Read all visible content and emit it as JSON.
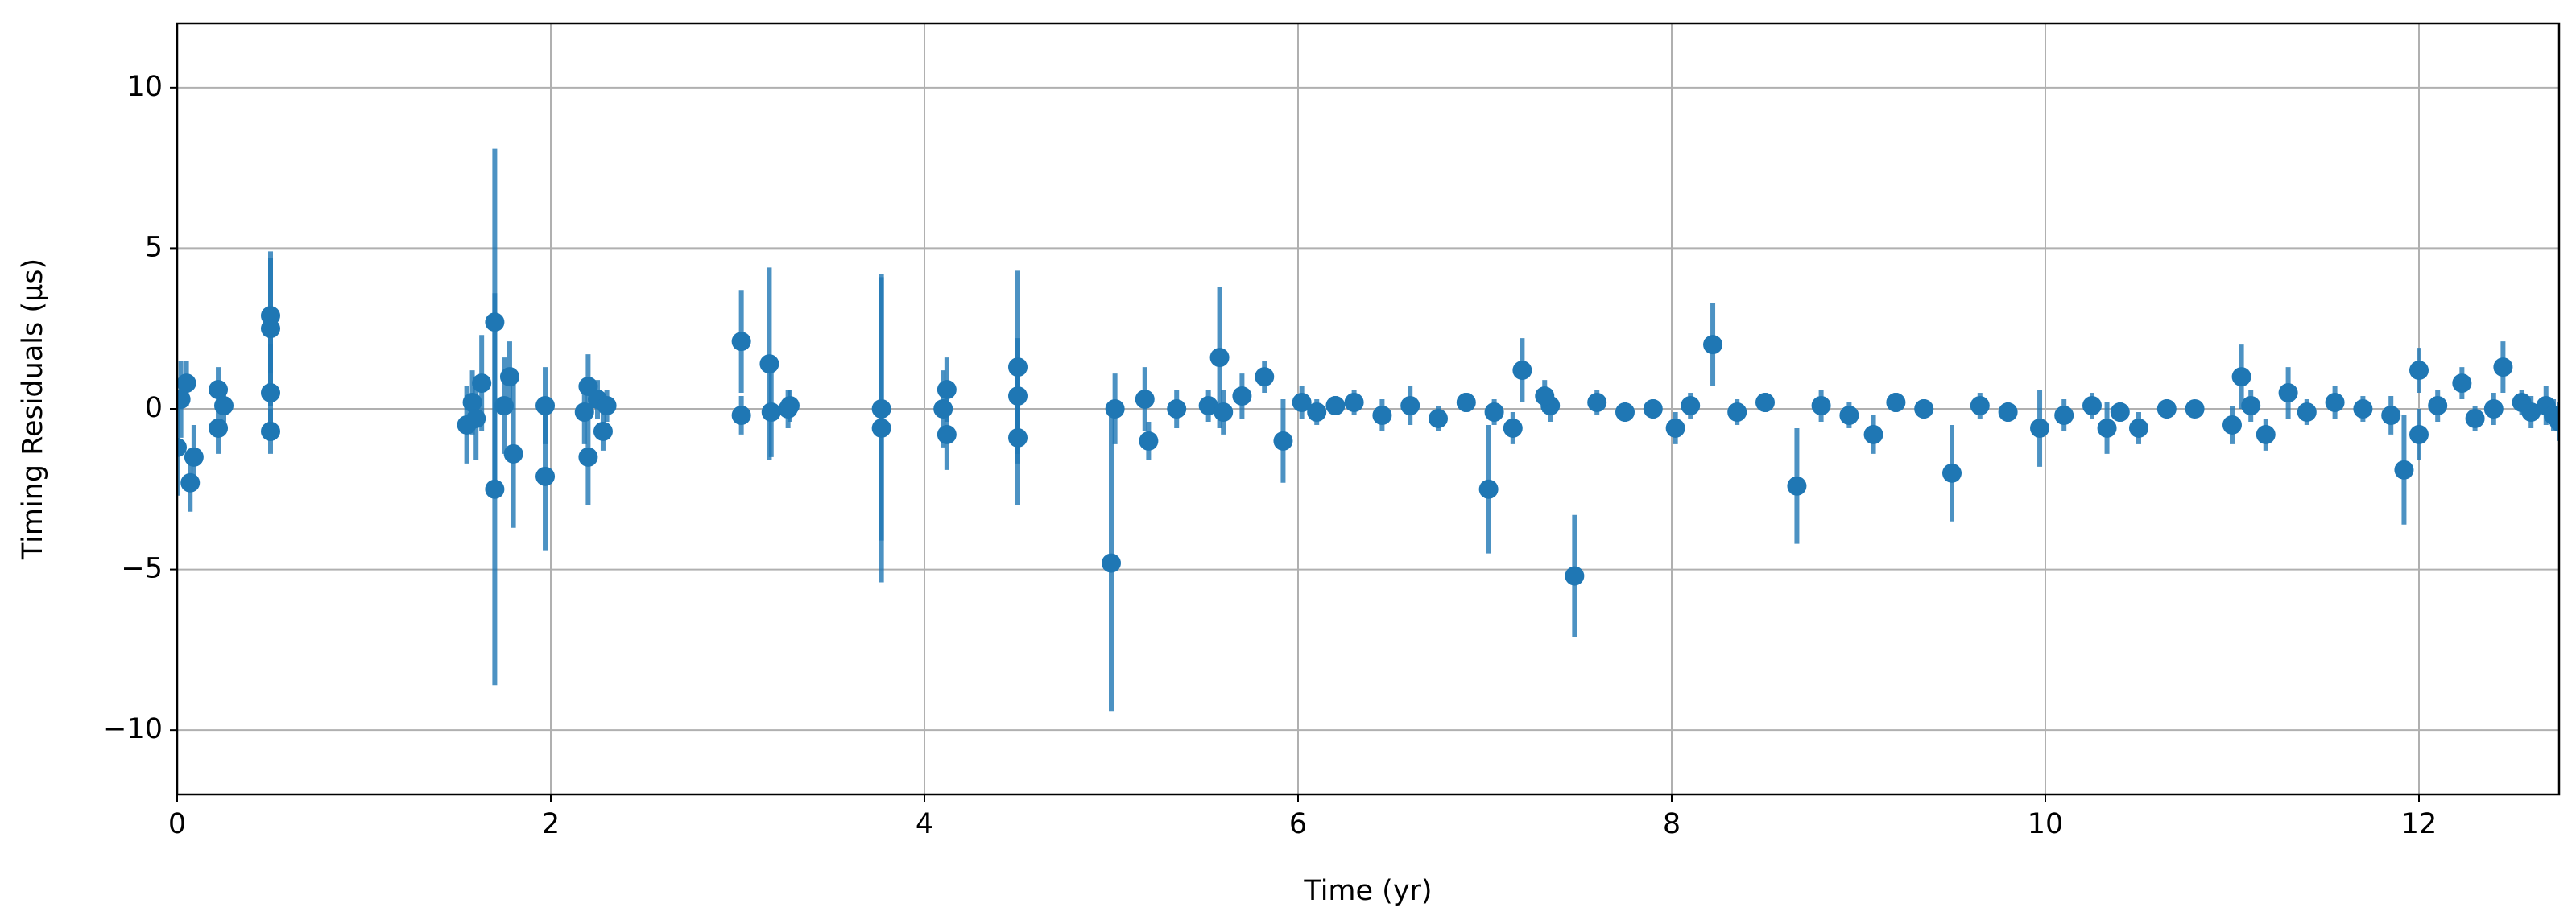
{
  "chart_data": {
    "type": "errorbar",
    "x_label": "Time (yr)",
    "y_label": "Timing Residuals (μs)",
    "color": "#1f77b4",
    "grid": true,
    "xlim": [
      0,
      12.75
    ],
    "ylim": [
      -12,
      12
    ],
    "xticks": [
      0,
      2,
      4,
      6,
      8,
      10,
      12
    ],
    "yticks": [
      {
        "value": -10,
        "label": "−10"
      },
      {
        "value": -5,
        "label": "−5"
      },
      0,
      5,
      10
    ],
    "x": [
      0.0,
      0.02,
      0.05,
      0.07,
      0.09,
      0.22,
      0.22,
      0.25,
      0.5,
      0.5,
      0.5,
      0.5,
      1.55,
      1.58,
      1.6,
      1.63,
      1.7,
      1.7,
      1.75,
      1.78,
      1.8,
      1.97,
      1.97,
      2.18,
      2.2,
      2.2,
      2.25,
      2.28,
      2.3,
      3.02,
      3.02,
      3.17,
      3.18,
      3.27,
      3.28,
      3.77,
      3.77,
      4.1,
      4.12,
      4.12,
      4.5,
      4.5,
      4.5,
      5.0,
      5.02,
      5.18,
      5.2,
      5.35,
      5.52,
      5.58,
      5.6,
      5.7,
      5.82,
      5.92,
      6.02,
      6.1,
      6.2,
      6.3,
      6.45,
      6.6,
      6.75,
      6.9,
      7.05,
      7.35,
      7.6,
      7.75,
      7.9,
      8.1,
      8.35,
      8.5,
      8.8,
      8.95,
      9.2,
      9.35,
      9.65,
      9.8,
      10.1,
      10.25,
      10.4,
      10.65,
      10.8,
      7.02,
      7.15,
      7.2,
      7.48,
      7.32,
      8.02,
      8.22,
      8.67,
      9.08,
      9.5,
      9.97,
      10.33,
      10.5,
      11.0,
      11.05,
      11.18,
      11.3,
      11.92,
      12.0,
      12.0,
      12.23,
      12.45,
      12.75,
      11.1,
      11.4,
      11.55,
      11.7,
      11.85,
      12.1,
      12.3,
      12.4,
      12.55,
      12.6,
      12.68,
      12.72
    ],
    "values": [
      -1.2,
      0.3,
      0.8,
      -2.3,
      -1.5,
      -0.6,
      0.6,
      0.1,
      2.9,
      2.5,
      0.5,
      -0.7,
      -0.5,
      0.2,
      -0.3,
      0.8,
      2.7,
      -2.5,
      0.1,
      1.0,
      -1.4,
      0.1,
      -2.1,
      -0.1,
      0.7,
      -1.5,
      0.3,
      -0.7,
      0.1,
      2.1,
      -0.2,
      1.4,
      -0.1,
      0.0,
      0.1,
      0.0,
      -0.6,
      0.0,
      0.6,
      -0.8,
      1.3,
      0.4,
      -0.9,
      -4.8,
      0.0,
      0.3,
      -1.0,
      0.0,
      0.1,
      1.6,
      -0.1,
      0.4,
      1.0,
      -1.0,
      0.2,
      -0.1,
      0.1,
      0.2,
      -0.2,
      0.1,
      -0.3,
      0.2,
      -0.1,
      0.1,
      0.2,
      -0.1,
      0.0,
      0.1,
      -0.1,
      0.2,
      0.1,
      -0.2,
      0.2,
      0.0,
      0.1,
      -0.1,
      -0.2,
      0.1,
      -0.1,
      0.0,
      0.0,
      -2.5,
      -0.6,
      1.2,
      -5.2,
      0.4,
      -0.6,
      2.0,
      -2.4,
      -0.8,
      -2.0,
      -0.6,
      -0.6,
      -0.6,
      -0.5,
      1.0,
      -0.8,
      0.5,
      -1.9,
      1.2,
      -0.8,
      0.8,
      1.3,
      -0.4,
      0.1,
      -0.1,
      0.2,
      0.0,
      -0.2,
      0.1,
      -0.3,
      0.0,
      0.2,
      -0.1,
      0.1,
      -0.2
    ],
    "errors": [
      1.5,
      1.2,
      0.7,
      0.9,
      1.0,
      0.8,
      0.7,
      0.6,
      1.8,
      2.4,
      1.5,
      0.7,
      1.2,
      1.0,
      1.3,
      1.5,
      5.4,
      6.1,
      1.5,
      1.1,
      2.3,
      1.2,
      2.3,
      1.0,
      1.0,
      1.5,
      0.6,
      0.6,
      0.5,
      1.6,
      0.6,
      3.0,
      1.4,
      0.6,
      0.5,
      4.1,
      4.8,
      1.2,
      1.0,
      1.1,
      3.0,
      1.8,
      2.1,
      4.6,
      1.1,
      1.0,
      0.6,
      0.6,
      0.5,
      2.2,
      0.7,
      0.7,
      0.5,
      1.3,
      0.5,
      0.4,
      0.3,
      0.4,
      0.5,
      0.6,
      0.4,
      0.3,
      0.4,
      0.5,
      0.4,
      0.3,
      0.3,
      0.4,
      0.4,
      0.3,
      0.5,
      0.4,
      0.3,
      0.3,
      0.4,
      0.3,
      0.5,
      0.4,
      0.3,
      0.3,
      0.2,
      2.0,
      0.5,
      1.0,
      1.9,
      0.5,
      0.5,
      1.3,
      1.8,
      0.6,
      1.5,
      1.2,
      0.8,
      0.5,
      0.6,
      1.0,
      0.5,
      0.8,
      1.7,
      0.7,
      0.8,
      0.5,
      0.8,
      0.6,
      0.5,
      0.4,
      0.5,
      0.4,
      0.6,
      0.5,
      0.4,
      0.5,
      0.4,
      0.5,
      0.6,
      0.5
    ]
  }
}
